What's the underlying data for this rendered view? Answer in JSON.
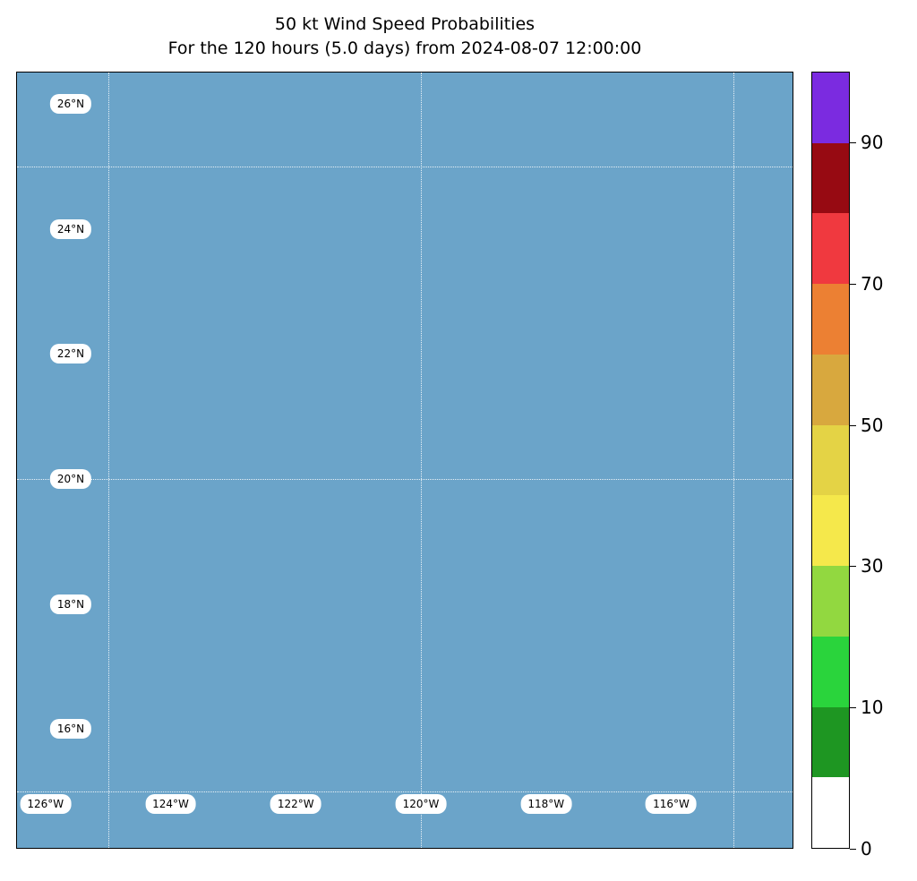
{
  "title": {
    "line1": "50 kt Wind Speed Probabilities",
    "line2": "For the 120 hours (5.0 days) from 2024-08-07 12:00:00"
  },
  "map": {
    "ocean_color": "#6ba4c9",
    "lat_labels": [
      {
        "text": "26°N",
        "deg": 26
      },
      {
        "text": "24°N",
        "deg": 24
      },
      {
        "text": "22°N",
        "deg": 22
      },
      {
        "text": "20°N",
        "deg": 20
      },
      {
        "text": "18°N",
        "deg": 18
      },
      {
        "text": "16°N",
        "deg": 16
      }
    ],
    "lon_labels": [
      {
        "text": "126°W",
        "deg": 126
      },
      {
        "text": "124°W",
        "deg": 124
      },
      {
        "text": "122°W",
        "deg": 122
      },
      {
        "text": "120°W",
        "deg": 120
      },
      {
        "text": "118°W",
        "deg": 118
      },
      {
        "text": "116°W",
        "deg": 116
      }
    ],
    "gridlines": {
      "lat_degs": [
        25,
        20,
        15
      ],
      "lon_degs": [
        125,
        120,
        115
      ]
    }
  },
  "chart_data": {
    "type": "heatmap",
    "title": "50 kt Wind Speed Probabilities",
    "subtitle": "For the 120 hours (5.0 days) from 2024-08-07 12:00:00",
    "x_ticks": [
      "126°W",
      "124°W",
      "122°W",
      "120°W",
      "118°W",
      "116°W"
    ],
    "y_ticks": [
      "26°N",
      "24°N",
      "22°N",
      "20°N",
      "18°N",
      "16°N"
    ],
    "values": [],
    "legend_position": "right colorbar",
    "grid": "dotted graticule at 5-degree intervals",
    "colorbar": {
      "boundaries": [
        0,
        5,
        10,
        20,
        30,
        40,
        50,
        60,
        70,
        80,
        90,
        100
      ],
      "colors": [
        "#ffffff",
        "#1e9622",
        "#2ad43c",
        "#92d840",
        "#f5e84b",
        "#e4d345",
        "#d8a83e",
        "#ec8033",
        "#f0393f",
        "#970a12",
        "#7b2be0"
      ],
      "tick_values": [
        90,
        70,
        50,
        30,
        10,
        0
      ],
      "tick_labels": [
        "90",
        "70",
        "50",
        "30",
        "10",
        "0"
      ]
    }
  }
}
